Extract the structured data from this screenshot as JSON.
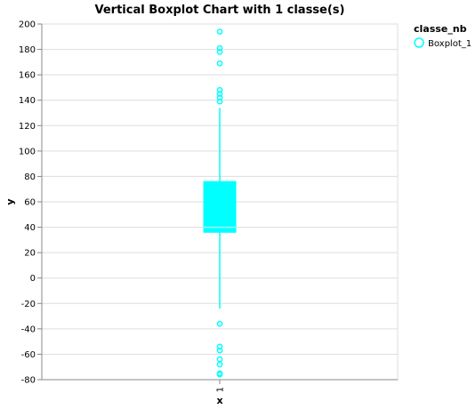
{
  "chart_data": {
    "type": "boxplot",
    "title": "Vertical Boxplot Chart with 1 classe(s)",
    "xlabel": "x",
    "ylabel": "y",
    "ylim": [
      -80,
      200
    ],
    "yticks": [
      -80,
      -60,
      -40,
      -20,
      0,
      20,
      40,
      60,
      80,
      100,
      120,
      140,
      160,
      180,
      200
    ],
    "categories": [
      "1"
    ],
    "grid": true,
    "legend": {
      "title": "classe_nb",
      "placement": "top-right"
    },
    "series": [
      {
        "name": "Boxplot_1",
        "category": "1",
        "color": "#00FFFF",
        "whisker_low": -24,
        "q1": 36,
        "median": 40,
        "q3": 76,
        "whisker_high": 134,
        "outliers": [
          194,
          181,
          178,
          169,
          148,
          145,
          142,
          139,
          -36,
          -54,
          -57,
          -64,
          -68,
          -75,
          -76
        ]
      }
    ]
  }
}
